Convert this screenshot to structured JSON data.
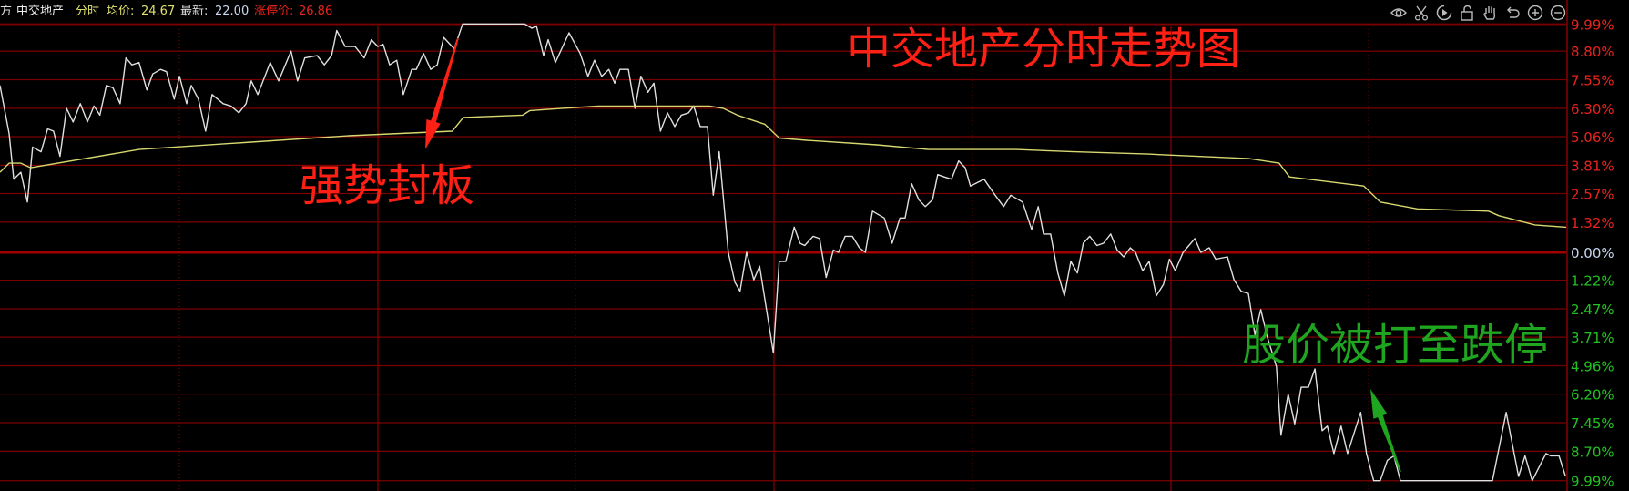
{
  "header": {
    "prefix": "方",
    "stock_name": "中交地产",
    "mode": "分时",
    "avg_label": "均价:",
    "avg_value": "24.67",
    "latest_label": "最新:",
    "latest_value": "22.00",
    "limit_label": "涨停价:",
    "limit_value": "26.86"
  },
  "toolbar": {
    "icons": [
      "eye-icon",
      "scissors-icon",
      "play-icon",
      "unlock-icon",
      "hand-icon",
      "undo-icon",
      "zoom-in-icon",
      "zoom-out-icon"
    ]
  },
  "annotations": {
    "title": "中交地产分时走势图",
    "limit_up_note": "强势封板",
    "limit_down_note": "股价被打至跌停"
  },
  "colors": {
    "up": "#e8231c",
    "down": "#22c222",
    "zero": "#c8d8f0",
    "grid": "#7a0000",
    "price_line": "#e0e0e0",
    "avg_line": "#d8d870",
    "annotation_red": "#ff2015",
    "annotation_green": "#1fa51f"
  },
  "chart_data": {
    "type": "line",
    "title": "",
    "xlabel": "",
    "ylabel": "",
    "x_unit": "minutes since open",
    "xlim": [
      0,
      240
    ],
    "ylim": [
      -9.99,
      9.99
    ],
    "grid": true,
    "y_ticks": [
      {
        "label": "9.99%",
        "value": 9.99
      },
      {
        "label": "8.80%",
        "value": 8.8
      },
      {
        "label": "7.55%",
        "value": 7.55
      },
      {
        "label": "6.30%",
        "value": 6.3
      },
      {
        "label": "5.06%",
        "value": 5.06
      },
      {
        "label": "3.81%",
        "value": 3.81
      },
      {
        "label": "2.57%",
        "value": 2.57
      },
      {
        "label": "1.32%",
        "value": 1.32
      },
      {
        "label": "0.00%",
        "value": 0
      },
      {
        "label": "1.22%",
        "value": -1.22
      },
      {
        "label": "2.47%",
        "value": -2.47
      },
      {
        "label": "3.71%",
        "value": -3.71
      },
      {
        "label": "4.96%",
        "value": -4.96
      },
      {
        "label": "6.20%",
        "value": -6.2
      },
      {
        "label": "7.45%",
        "value": -7.45
      },
      {
        "label": "8.70%",
        "value": -8.7
      },
      {
        "label": "9.99%",
        "value": -9.99
      }
    ],
    "series": [
      {
        "role": "price",
        "points": [
          [
            0,
            7.3
          ],
          [
            1.4,
            5.2
          ],
          [
            2.1,
            3.2
          ],
          [
            3.2,
            3.5
          ],
          [
            4.2,
            2.2
          ],
          [
            5,
            4.6
          ],
          [
            6.3,
            4.4
          ],
          [
            7.3,
            5.4
          ],
          [
            8.2,
            5.3
          ],
          [
            9.2,
            4.2
          ],
          [
            10.2,
            6.3
          ],
          [
            11.2,
            5.7
          ],
          [
            12.3,
            6.5
          ],
          [
            13.4,
            5.7
          ],
          [
            14.4,
            6.4
          ],
          [
            15.3,
            6.0
          ],
          [
            16.3,
            7.3
          ],
          [
            17.3,
            7.2
          ],
          [
            18.4,
            6.5
          ],
          [
            19.3,
            8.5
          ],
          [
            20.2,
            8.2
          ],
          [
            21.3,
            8.3
          ],
          [
            22.5,
            7.1
          ],
          [
            23.4,
            7.8
          ],
          [
            24.6,
            8.0
          ],
          [
            25.5,
            7.9
          ],
          [
            26.7,
            6.7
          ],
          [
            27.5,
            7.7
          ],
          [
            28.6,
            6.5
          ],
          [
            29.3,
            7.3
          ],
          [
            30.4,
            6.7
          ],
          [
            31.5,
            5.3
          ],
          [
            32.5,
            6.9
          ],
          [
            34.2,
            6.5
          ],
          [
            35.4,
            6.4
          ],
          [
            36.6,
            6.1
          ],
          [
            37.7,
            6.5
          ],
          [
            38.5,
            7.5
          ],
          [
            39.5,
            6.9
          ],
          [
            41.4,
            8.3
          ],
          [
            42.7,
            7.5
          ],
          [
            44.6,
            8.8
          ],
          [
            45.6,
            7.5
          ],
          [
            46.7,
            8.5
          ],
          [
            48.6,
            8.6
          ],
          [
            49.7,
            8.2
          ],
          [
            50.8,
            8.6
          ],
          [
            51.6,
            9.7
          ],
          [
            52.9,
            9.0
          ],
          [
            54.4,
            9.0
          ],
          [
            55.8,
            8.5
          ],
          [
            56.9,
            9.3
          ],
          [
            57.9,
            9.0
          ],
          [
            58.7,
            9.1
          ],
          [
            59.7,
            8.2
          ],
          [
            60.8,
            8.4
          ],
          [
            61.8,
            6.9
          ],
          [
            63.1,
            8.0
          ],
          [
            63.8,
            8.0
          ],
          [
            64.9,
            8.7
          ],
          [
            66,
            8.0
          ],
          [
            67,
            8.2
          ],
          [
            68,
            9.4
          ],
          [
            69.6,
            8.9
          ],
          [
            70.9,
            9.99
          ],
          [
            80.4,
            9.99
          ],
          [
            81.5,
            9.8
          ],
          [
            82.2,
            9.9
          ],
          [
            83.3,
            8.6
          ],
          [
            84,
            9.3
          ],
          [
            85.1,
            8.3
          ],
          [
            87.2,
            9.6
          ],
          [
            88.9,
            8.7
          ],
          [
            90.1,
            7.7
          ],
          [
            91.1,
            8.4
          ],
          [
            92.2,
            7.7
          ],
          [
            93.3,
            8.0
          ],
          [
            94.2,
            7.4
          ],
          [
            95,
            8.0
          ],
          [
            96.3,
            8.0
          ],
          [
            97.3,
            6.3
          ],
          [
            98.2,
            7.7
          ],
          [
            99.3,
            7.0
          ],
          [
            100.2,
            7.4
          ],
          [
            101.2,
            5.3
          ],
          [
            102.3,
            6.1
          ],
          [
            103.4,
            5.5
          ],
          [
            104.4,
            6.0
          ],
          [
            105.5,
            6.1
          ],
          [
            106.3,
            6.4
          ],
          [
            107.3,
            5.5
          ],
          [
            108.4,
            5.5
          ],
          [
            109.3,
            2.5
          ],
          [
            110.2,
            4.4
          ],
          [
            111.6,
            0
          ],
          [
            112.6,
            -1.3
          ],
          [
            113.4,
            -1.7
          ],
          [
            114.4,
            0
          ],
          [
            115.5,
            -1.2
          ],
          [
            116.4,
            -0.6
          ],
          [
            118.5,
            -4.4
          ],
          [
            119.4,
            -0.4
          ],
          [
            120.4,
            -0.4
          ],
          [
            121.7,
            1.1
          ],
          [
            122.6,
            0.4
          ],
          [
            123.3,
            0.3
          ],
          [
            124.6,
            0.7
          ],
          [
            125.6,
            0.6
          ],
          [
            126.6,
            -1.1
          ],
          [
            127.7,
            0.1
          ],
          [
            128.5,
            0
          ],
          [
            129.5,
            0.7
          ],
          [
            130.6,
            0.7
          ],
          [
            131.7,
            0.2
          ],
          [
            132.6,
            0
          ],
          [
            133.7,
            1.8
          ],
          [
            135.5,
            1.5
          ],
          [
            136.7,
            0.4
          ],
          [
            137.9,
            1.5
          ],
          [
            138.7,
            1.5
          ],
          [
            139.7,
            3.0
          ],
          [
            140.8,
            2.3
          ],
          [
            141.8,
            2.0
          ],
          [
            142.9,
            2.3
          ],
          [
            143.7,
            3.4
          ],
          [
            144.7,
            3.3
          ],
          [
            145.8,
            3.2
          ],
          [
            146.9,
            4.0
          ],
          [
            147.9,
            3.7
          ],
          [
            148.7,
            2.9
          ],
          [
            150.8,
            3.2
          ],
          [
            152.5,
            2.5
          ],
          [
            153.8,
            2.0
          ],
          [
            154.9,
            2.5
          ],
          [
            156.7,
            2.2
          ],
          [
            158.1,
            1.0
          ],
          [
            159.1,
            2.0
          ],
          [
            159.9,
            0.8
          ],
          [
            161,
            0.8
          ],
          [
            162.1,
            -0.9
          ],
          [
            163.1,
            -1.9
          ],
          [
            164.1,
            -0.4
          ],
          [
            165.1,
            -0.9
          ],
          [
            166,
            0.4
          ],
          [
            167,
            0.7
          ],
          [
            168.1,
            0.3
          ],
          [
            169.1,
            0.4
          ],
          [
            170.2,
            0.8
          ],
          [
            171.2,
            0.1
          ],
          [
            172.2,
            -0.2
          ],
          [
            173.2,
            0.2
          ],
          [
            174,
            0
          ],
          [
            175.1,
            -0.8
          ],
          [
            176.1,
            -0.4
          ],
          [
            177.2,
            -1.9
          ],
          [
            178.3,
            -1.4
          ],
          [
            179.2,
            -0.3
          ],
          [
            180.1,
            -0.8
          ],
          [
            181.3,
            0
          ],
          [
            183.1,
            0.6
          ],
          [
            184,
            0
          ],
          [
            185.3,
            0.2
          ],
          [
            186.3,
            -0.3
          ],
          [
            188.1,
            -0.2
          ],
          [
            189.1,
            -1.2
          ],
          [
            190.2,
            -1.7
          ],
          [
            191.3,
            -1.8
          ],
          [
            192.3,
            -3.6
          ],
          [
            193.2,
            -2.5
          ],
          [
            194.2,
            -3.7
          ],
          [
            195.6,
            -5.0
          ],
          [
            196.3,
            -8.0
          ],
          [
            197.4,
            -6.2
          ],
          [
            198.4,
            -7.5
          ],
          [
            199.4,
            -5.9
          ],
          [
            200.5,
            -5.9
          ],
          [
            201.5,
            -5.1
          ],
          [
            202.6,
            -7.8
          ],
          [
            203.4,
            -7.6
          ],
          [
            204.4,
            -8.8
          ],
          [
            205.5,
            -7.6
          ],
          [
            206.5,
            -8.8
          ],
          [
            208.5,
            -7.0
          ],
          [
            209.4,
            -8.8
          ],
          [
            210.5,
            -9.99
          ],
          [
            211.5,
            -9.99
          ],
          [
            212.6,
            -9.1
          ],
          [
            213.6,
            -8.9
          ],
          [
            214.6,
            -9.99
          ],
          [
            228.7,
            -9.99
          ],
          [
            230.8,
            -7.0
          ],
          [
            232.7,
            -9.8
          ],
          [
            233.7,
            -8.9
          ],
          [
            234.8,
            -9.99
          ],
          [
            236.9,
            -8.8
          ],
          [
            237.6,
            -8.9
          ],
          [
            238.9,
            -8.9
          ],
          [
            239.9,
            -9.8
          ]
        ]
      },
      {
        "role": "average",
        "points": [
          [
            0,
            3.5
          ],
          [
            1.4,
            3.9
          ],
          [
            3.2,
            3.9
          ],
          [
            4.7,
            3.7
          ],
          [
            21.3,
            4.5
          ],
          [
            37.4,
            4.8
          ],
          [
            53.4,
            5.1
          ],
          [
            69.3,
            5.3
          ],
          [
            71,
            5.9
          ],
          [
            80.1,
            6.0
          ],
          [
            81.2,
            6.2
          ],
          [
            86.2,
            6.3
          ],
          [
            91.7,
            6.4
          ],
          [
            108.7,
            6.4
          ],
          [
            110.8,
            6.3
          ],
          [
            113,
            6.0
          ],
          [
            117.2,
            5.6
          ],
          [
            119.4,
            5.0
          ],
          [
            123.6,
            4.9
          ],
          [
            134.4,
            4.7
          ],
          [
            142.3,
            4.5
          ],
          [
            155.7,
            4.5
          ],
          [
            164.6,
            4.4
          ],
          [
            175.9,
            4.3
          ],
          [
            191.4,
            4.1
          ],
          [
            196,
            3.9
          ],
          [
            197.6,
            3.3
          ],
          [
            209,
            2.9
          ],
          [
            211.5,
            2.2
          ],
          [
            217.2,
            1.9
          ],
          [
            228.1,
            1.8
          ],
          [
            229.7,
            1.6
          ],
          [
            235.2,
            1.2
          ],
          [
            240,
            1.1
          ]
        ]
      }
    ]
  }
}
